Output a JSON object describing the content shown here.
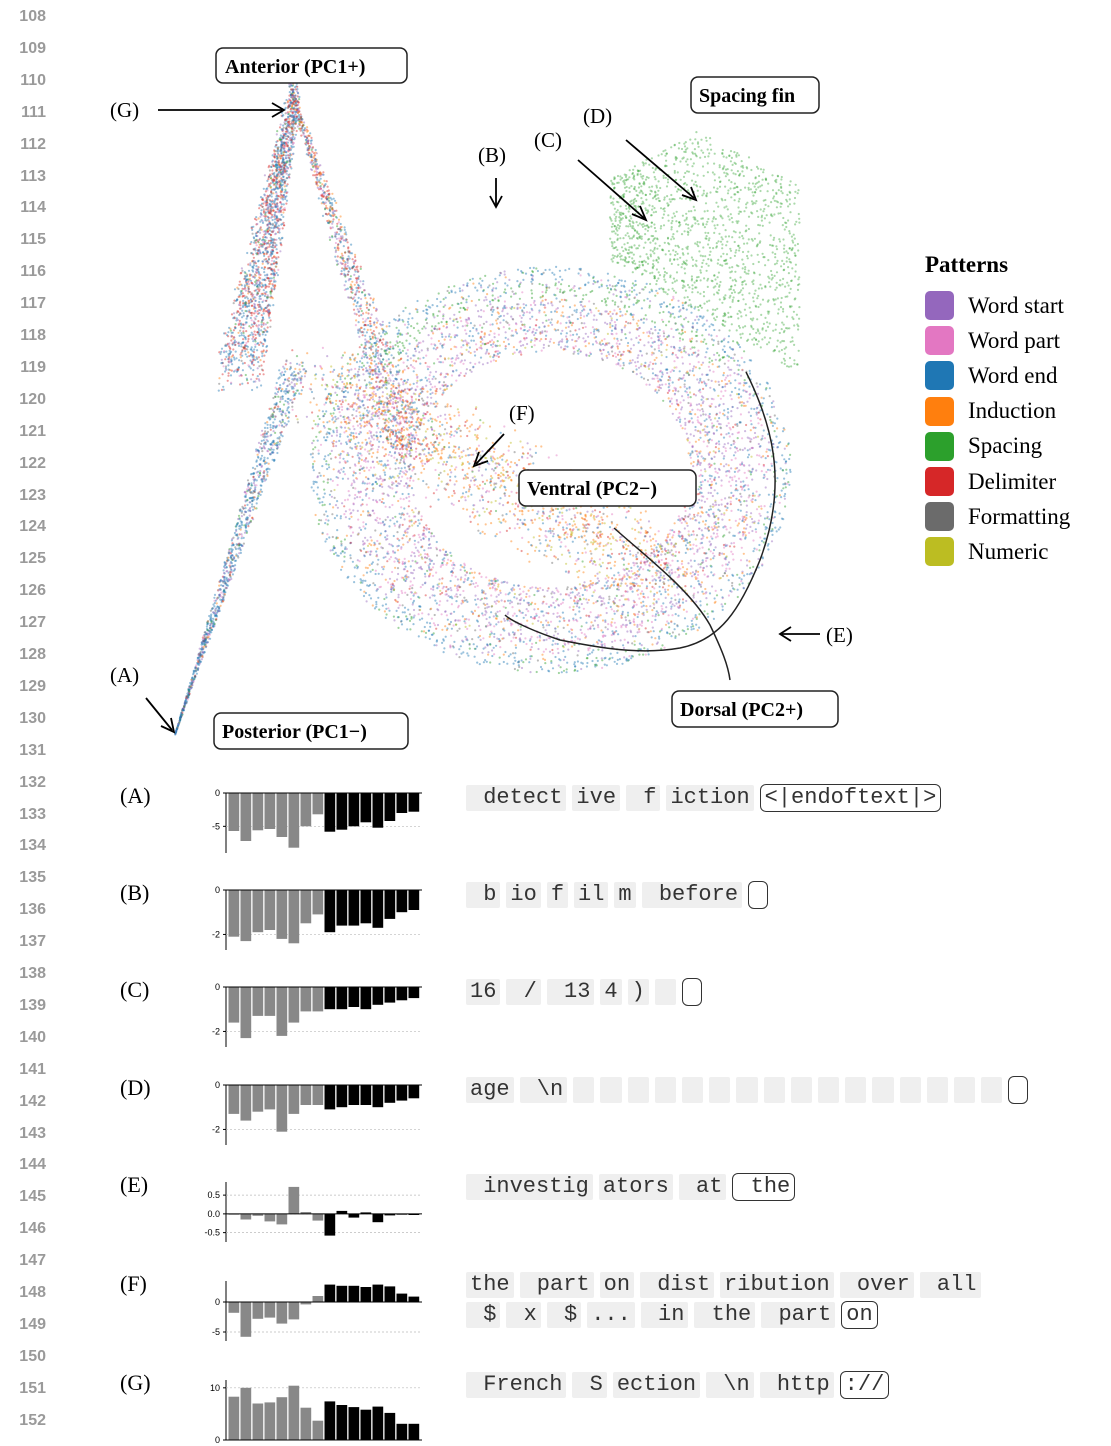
{
  "line_numbers": [
    "108",
    "109",
    "110",
    "111",
    "112",
    "113",
    "114",
    "115",
    "116",
    "117",
    "118",
    "119",
    "120",
    "121",
    "122",
    "123",
    "124",
    "125",
    "126",
    "127",
    "128",
    "129",
    "130",
    "131",
    "132",
    "133",
    "134",
    "135",
    "136",
    "137",
    "138",
    "139",
    "140",
    "141",
    "142",
    "143",
    "144",
    "145",
    "146",
    "147",
    "148",
    "149",
    "150",
    "151",
    "152"
  ],
  "figure": {
    "box_labels": {
      "anterior": "Anterior (PC1+)",
      "posterior": "Posterior (PC1−)",
      "ventral": "Ventral (PC2−)",
      "dorsal": "Dorsal (PC2+)",
      "spacing_fin": "Spacing fin"
    },
    "callouts": {
      "A": "(A)",
      "B": "(B)",
      "C": "(C)",
      "D": "(D)",
      "E": "(E)",
      "F": "(F)",
      "G": "(G)"
    }
  },
  "legend": {
    "title": "Patterns",
    "items": [
      {
        "label": "Word start",
        "color": "#9467bd"
      },
      {
        "label": "Word part",
        "color": "#e377c2"
      },
      {
        "label": "Word end",
        "color": "#1f77b4"
      },
      {
        "label": "Induction",
        "color": "#ff7f0e"
      },
      {
        "label": "Spacing",
        "color": "#2ca02c"
      },
      {
        "label": "Delimiter",
        "color": "#d62728"
      },
      {
        "label": "Formatting",
        "color": "#6b6b6b"
      },
      {
        "label": "Numeric",
        "color": "#bcbd22"
      }
    ]
  },
  "rows": [
    {
      "label": "(A)",
      "tokens": [
        " detect",
        "ive",
        " f",
        "iction"
      ],
      "final": "<|endoftext|>",
      "final_empty": false,
      "chart_data": {
        "type": "bar",
        "ylim": [
          -9,
          0
        ],
        "yticks": [
          "0",
          "-5"
        ],
        "ytick_values": [
          0,
          -5
        ],
        "values": [
          -5.7,
          -7.2,
          -5.6,
          -5.4,
          -6.6,
          -8.2,
          -5.0,
          -3.2,
          -5.8,
          -5.5,
          -5.0,
          -4.4,
          -5.2,
          -4.2,
          -3.0,
          -2.8
        ]
      }
    },
    {
      "label": "(B)",
      "tokens": [
        " b",
        "io",
        "f",
        "il",
        "m",
        " before"
      ],
      "final": "",
      "final_empty": true,
      "chart_data": {
        "type": "bar",
        "ylim": [
          -2.7,
          0
        ],
        "yticks": [
          "0",
          "-2"
        ],
        "ytick_values": [
          0,
          -2
        ],
        "values": [
          -2.1,
          -2.3,
          -1.9,
          -1.8,
          -2.2,
          -2.4,
          -1.5,
          -1.1,
          -1.9,
          -1.6,
          -1.6,
          -1.5,
          -1.7,
          -1.3,
          -1.0,
          -0.9
        ]
      }
    },
    {
      "label": "(C)",
      "tokens": [
        "16",
        " /",
        " 13",
        "4",
        ")",
        " "
      ],
      "final": "",
      "final_empty": true,
      "chart_data": {
        "type": "bar",
        "ylim": [
          -2.7,
          0
        ],
        "yticks": [
          "0",
          "-2"
        ],
        "ytick_values": [
          0,
          -2
        ],
        "values": [
          -1.6,
          -2.3,
          -1.3,
          -1.3,
          -2.2,
          -1.6,
          -1.1,
          -1.1,
          -1.0,
          -1.0,
          -0.9,
          -1.0,
          -0.8,
          -0.7,
          -0.6,
          -0.5
        ]
      }
    },
    {
      "label": "(D)",
      "tokens": [
        "age",
        " \\n",
        " ",
        " ",
        " ",
        " ",
        " ",
        " ",
        " ",
        " ",
        " ",
        " ",
        " ",
        " ",
        " ",
        " ",
        " ",
        " "
      ],
      "final": "",
      "final_empty": true,
      "chart_data": {
        "type": "bar",
        "ylim": [
          -2.7,
          0
        ],
        "yticks": [
          "0",
          "-2"
        ],
        "ytick_values": [
          0,
          -2
        ],
        "values": [
          -1.3,
          -1.6,
          -1.2,
          -1.1,
          -2.1,
          -1.3,
          -0.9,
          -0.9,
          -1.1,
          -1.0,
          -0.9,
          -0.9,
          -1.0,
          -0.8,
          -0.7,
          -0.6
        ]
      }
    },
    {
      "label": "(E)",
      "tokens": [
        " investig",
        "ators",
        " at"
      ],
      "final": " the",
      "final_empty": false,
      "chart_data": {
        "type": "bar",
        "ylim": [
          -0.75,
          0.85
        ],
        "yticks": [
          "0.5",
          "0.0",
          "-0.5"
        ],
        "ytick_values": [
          0.5,
          0.0,
          -0.5
        ],
        "values": [
          -0.02,
          -0.15,
          -0.05,
          -0.2,
          -0.28,
          0.72,
          0.05,
          -0.18,
          -0.58,
          0.08,
          -0.1,
          0.04,
          -0.22,
          -0.04,
          -0.02,
          -0.03
        ]
      }
    },
    {
      "label": "(F)",
      "tokens": [
        "the",
        " part",
        "on",
        " dist",
        "ribution",
        " over",
        " all"
      ],
      "tokens2": [
        " $",
        " x",
        " $",
        "...",
        " in",
        " the",
        " part"
      ],
      "final": "on",
      "final_empty": false,
      "chart_data": {
        "type": "bar",
        "ylim": [
          -6.5,
          3.5
        ],
        "yticks": [
          "0",
          "-5"
        ],
        "ytick_values": [
          0,
          -5
        ],
        "values": [
          -1.8,
          -5.8,
          -2.8,
          -2.6,
          -3.6,
          -2.9,
          -0.4,
          1.0,
          2.9,
          2.7,
          2.7,
          2.5,
          2.9,
          2.6,
          1.4,
          0.9
        ]
      }
    },
    {
      "label": "(G)",
      "tokens": [
        " French",
        " S",
        "ection",
        " \\n",
        " http"
      ],
      "final": "://",
      "final_empty": false,
      "chart_data": {
        "type": "bar",
        "ylim": [
          0,
          11.5
        ],
        "yticks": [
          "10",
          "0"
        ],
        "ytick_values": [
          10,
          0
        ],
        "values": [
          8.3,
          10.0,
          7.0,
          7.2,
          8.2,
          10.4,
          6.2,
          3.7,
          7.4,
          6.7,
          6.3,
          5.8,
          6.4,
          5.2,
          3.1,
          3.1
        ]
      }
    }
  ]
}
